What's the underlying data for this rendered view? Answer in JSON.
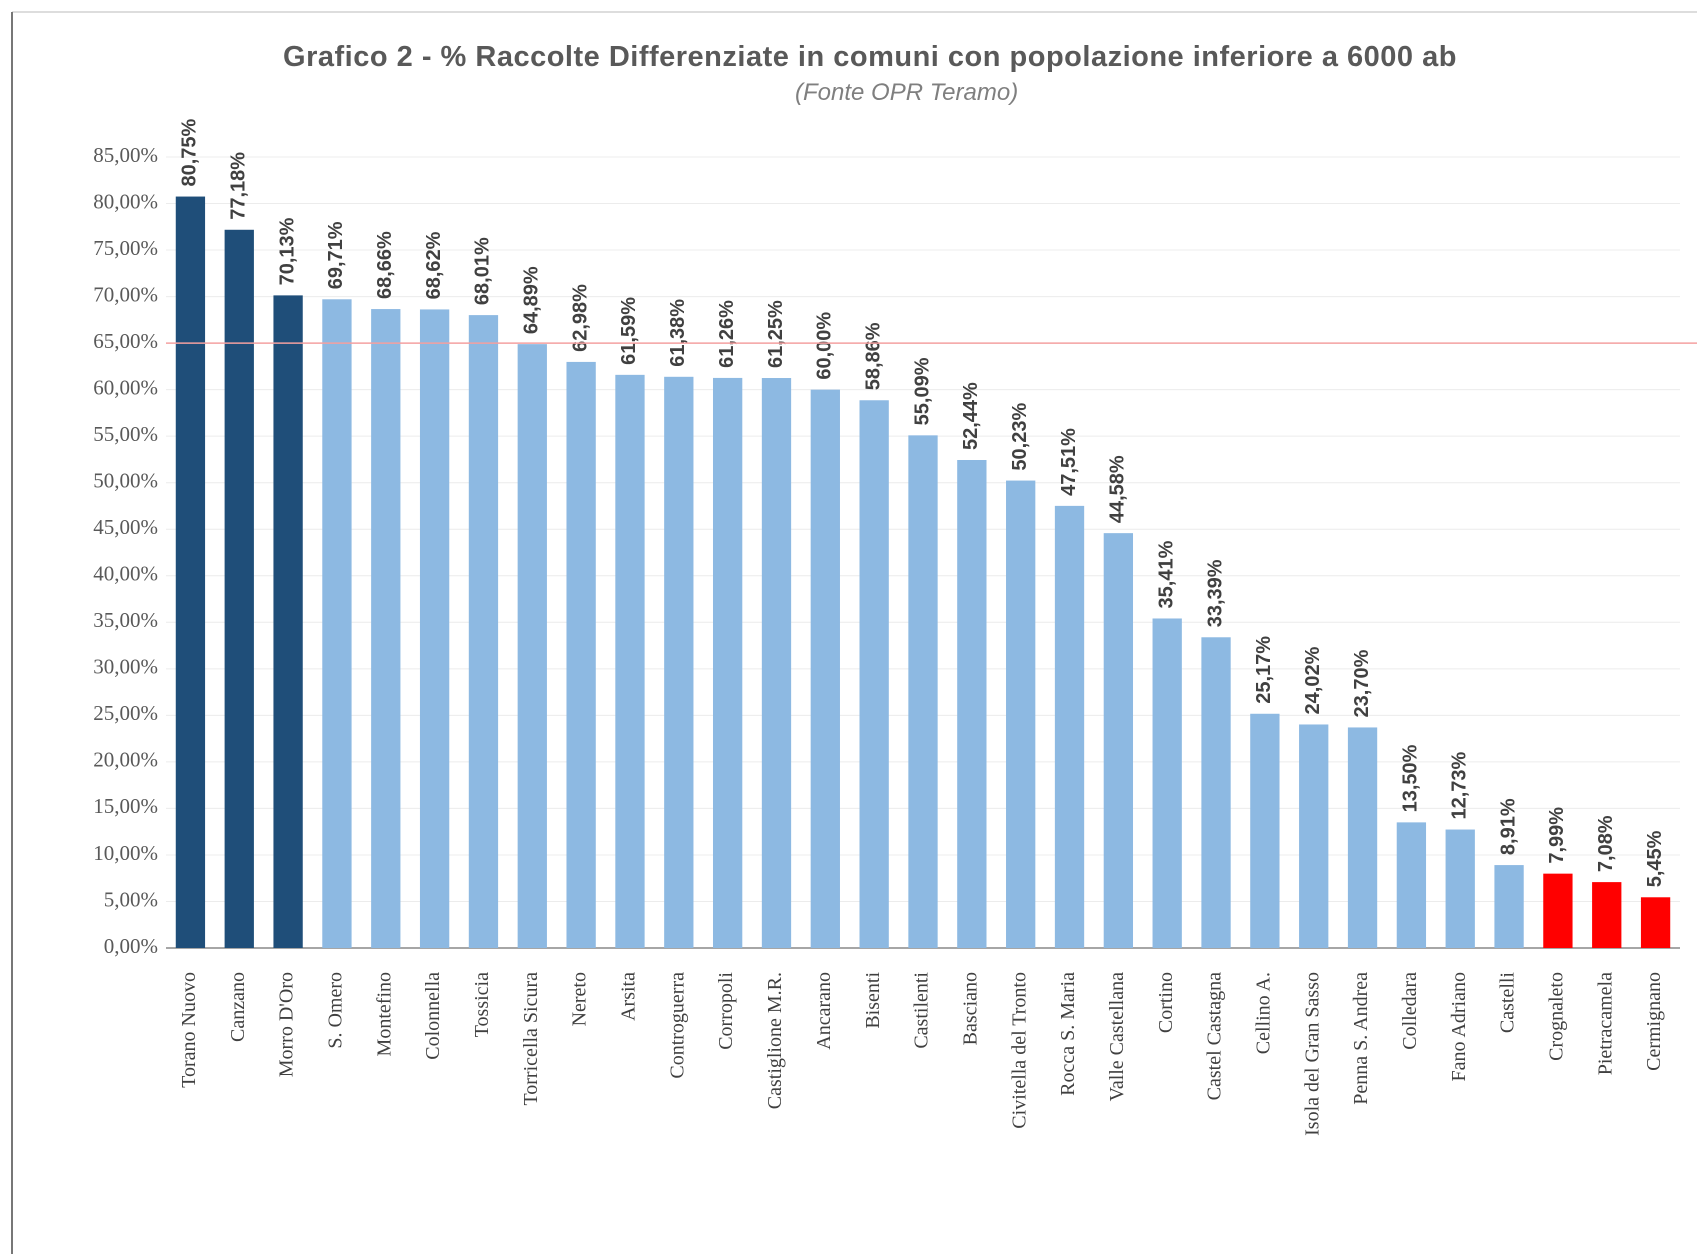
{
  "chart_data": {
    "type": "bar",
    "title": "Grafico 2 - % Raccolte Differenziate in comuni con popolazione inferiore a 6000 ab",
    "subtitle": "(Fonte OPR Teramo)",
    "categories": [
      "Torano Nuovo",
      "Canzano",
      "Morro D'Oro",
      "S. Omero",
      "Montefino",
      "Colonnella",
      "Tossicia",
      "Torricella Sicura",
      "Nereto",
      "Arsita",
      "Controguerra",
      "Corropoli",
      "Castiglione M.R.",
      "Ancarano",
      "Bisenti",
      "Castilenti",
      "Basciano",
      "Civitella del Tronto",
      "Rocca S. Maria",
      "Valle Castellana",
      "Cortino",
      "Castel Castagna",
      "Cellino A.",
      "Isola del Gran Sasso",
      "Penna S. Andrea",
      "Colledara",
      "Fano Adriano",
      "Castelli",
      "Crognaleto",
      "Pietracamela",
      "Cermignano"
    ],
    "values": [
      80.75,
      77.18,
      70.13,
      69.71,
      68.66,
      68.62,
      68.01,
      64.89,
      62.98,
      61.59,
      61.38,
      61.26,
      61.25,
      60.0,
      58.86,
      55.09,
      52.44,
      50.23,
      47.51,
      44.58,
      35.41,
      33.39,
      25.17,
      24.02,
      23.7,
      13.5,
      12.73,
      8.91,
      7.99,
      7.08,
      5.45
    ],
    "value_labels": [
      "80,75%",
      "77,18%",
      "70,13%",
      "69,71%",
      "68,66%",
      "68,62%",
      "68,01%",
      "64,89%",
      "62,98%",
      "61,59%",
      "61,38%",
      "61,26%",
      "61,25%",
      "60,00%",
      "58,86%",
      "55,09%",
      "52,44%",
      "50,23%",
      "47,51%",
      "44,58%",
      "35,41%",
      "33,39%",
      "25,17%",
      "24,02%",
      "23,70%",
      "13,50%",
      "12,73%",
      "8,91%",
      "7,99%",
      "7,08%",
      "5,45%"
    ],
    "colors": [
      "#1f4e79",
      "#1f4e79",
      "#1f4e79",
      "#8db9e2",
      "#8db9e2",
      "#8db9e2",
      "#8db9e2",
      "#8db9e2",
      "#8db9e2",
      "#8db9e2",
      "#8db9e2",
      "#8db9e2",
      "#8db9e2",
      "#8db9e2",
      "#8db9e2",
      "#8db9e2",
      "#8db9e2",
      "#8db9e2",
      "#8db9e2",
      "#8db9e2",
      "#8db9e2",
      "#8db9e2",
      "#8db9e2",
      "#8db9e2",
      "#8db9e2",
      "#8db9e2",
      "#8db9e2",
      "#8db9e2",
      "#ff0000",
      "#ff0000",
      "#ff0000"
    ],
    "ylim": [
      0,
      85
    ],
    "yticks": [
      {
        "value": 0,
        "label": "0,00%"
      },
      {
        "value": 5,
        "label": "5,00%"
      },
      {
        "value": 10,
        "label": "10,00%"
      },
      {
        "value": 15,
        "label": "15,00%"
      },
      {
        "value": 20,
        "label": "20,00%"
      },
      {
        "value": 25,
        "label": "25,00%"
      },
      {
        "value": 30,
        "label": "30,00%"
      },
      {
        "value": 35,
        "label": "35,00%"
      },
      {
        "value": 40,
        "label": "40,00%"
      },
      {
        "value": 45,
        "label": "45,00%"
      },
      {
        "value": 50,
        "label": "50,00%"
      },
      {
        "value": 55,
        "label": "55,00%"
      },
      {
        "value": 60,
        "label": "60,00%"
      },
      {
        "value": 65,
        "label": "65,00%"
      },
      {
        "value": 70,
        "label": "70,00%"
      },
      {
        "value": 75,
        "label": "75,00%"
      },
      {
        "value": 80,
        "label": "80,00%"
      },
      {
        "value": 85,
        "label": "85,00%"
      }
    ],
    "grid": true,
    "reference_line": 65,
    "reference_color": "#f4a0a0"
  }
}
